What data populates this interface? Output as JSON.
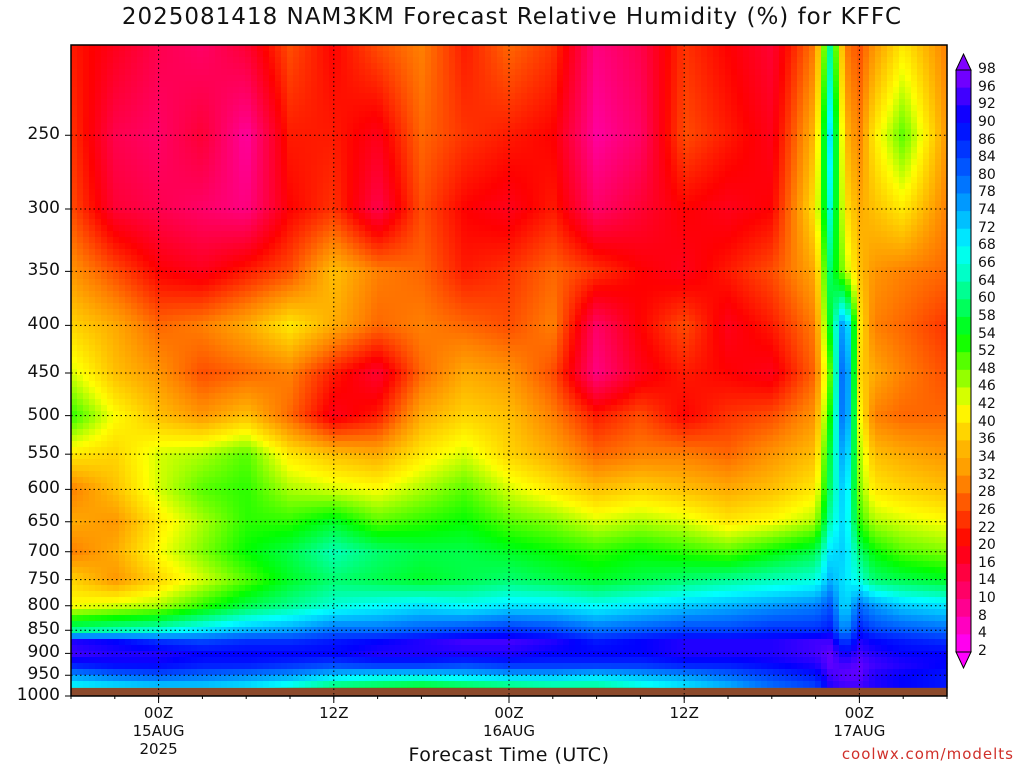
{
  "title": "2025081418 NAM3KM Forecast Relative Humidity (%) for KFFC",
  "watermark": "coolwx.com/modelts",
  "colors": {
    "ground": "#8c4a2c",
    "grid": "#000000",
    "scale": [
      "#ff00ff",
      "#ff0080",
      "#ff0000",
      "#ff8000",
      "#ffff00",
      "#00ff00",
      "#00ffff",
      "#0080ff",
      "#0000ff",
      "#8000ff"
    ]
  },
  "chart_data": {
    "type": "heatmap",
    "title": "2025081418 NAM3KM Forecast Relative Humidity (%) for KFFC",
    "xlabel": "Forecast Time (UTC)",
    "ylabel": "",
    "x_ticks": [
      {
        "hours": 6,
        "lines": [
          "00Z",
          "15AUG",
          "2025"
        ]
      },
      {
        "hours": 18,
        "lines": [
          "12Z"
        ]
      },
      {
        "hours": 30,
        "lines": [
          "00Z",
          "16AUG"
        ]
      },
      {
        "hours": 42,
        "lines": [
          "12Z"
        ]
      },
      {
        "hours": 54,
        "lines": [
          "00Z",
          "17AUG"
        ]
      }
    ],
    "xlim_hours": [
      0,
      60
    ],
    "y_ticks_hpa": [
      250,
      300,
      350,
      400,
      450,
      500,
      550,
      600,
      650,
      700,
      750,
      800,
      850,
      900,
      950,
      1000
    ],
    "ylim_hpa": [
      200,
      1000
    ],
    "y_scale": "log-pressure",
    "ground_pressure_hpa": 980,
    "colorbar_levels": [
      98,
      96,
      92,
      90,
      86,
      84,
      80,
      78,
      74,
      72,
      68,
      66,
      64,
      60,
      58,
      54,
      52,
      48,
      46,
      42,
      40,
      36,
      34,
      32,
      28,
      26,
      22,
      20,
      16,
      14,
      10,
      8,
      4,
      2
    ],
    "x_hours": [
      0,
      3,
      6,
      9,
      12,
      15,
      18,
      21,
      24,
      27,
      30,
      33,
      36,
      39,
      42,
      45,
      48,
      51,
      52,
      53,
      54,
      55,
      57,
      60
    ],
    "y_hpa": [
      200,
      250,
      300,
      350,
      400,
      450,
      500,
      550,
      600,
      650,
      700,
      750,
      800,
      850,
      875,
      900,
      925,
      950,
      975
    ],
    "rh": [
      [
        22,
        18,
        14,
        12,
        16,
        26,
        20,
        26,
        30,
        22,
        28,
        24,
        10,
        14,
        24,
        20,
        16,
        30,
        62,
        30,
        26,
        32,
        40,
        30
      ],
      [
        24,
        14,
        12,
        16,
        8,
        22,
        22,
        18,
        28,
        24,
        22,
        20,
        8,
        12,
        26,
        22,
        18,
        36,
        70,
        36,
        30,
        40,
        50,
        32
      ],
      [
        26,
        16,
        14,
        12,
        10,
        20,
        24,
        14,
        26,
        20,
        18,
        22,
        12,
        16,
        20,
        18,
        20,
        40,
        66,
        40,
        34,
        36,
        40,
        30
      ],
      [
        32,
        26,
        20,
        18,
        22,
        26,
        36,
        30,
        28,
        22,
        24,
        28,
        24,
        20,
        18,
        22,
        26,
        34,
        60,
        46,
        36,
        32,
        30,
        28
      ],
      [
        38,
        34,
        28,
        30,
        34,
        40,
        34,
        28,
        30,
        28,
        26,
        30,
        12,
        20,
        26,
        18,
        22,
        30,
        56,
        80,
        40,
        30,
        28,
        24
      ],
      [
        44,
        36,
        32,
        26,
        28,
        30,
        22,
        16,
        28,
        34,
        32,
        26,
        10,
        18,
        22,
        20,
        18,
        28,
        50,
        86,
        38,
        34,
        30,
        26
      ],
      [
        52,
        42,
        36,
        32,
        36,
        28,
        18,
        22,
        34,
        38,
        36,
        30,
        22,
        26,
        20,
        24,
        26,
        32,
        54,
        84,
        42,
        30,
        28,
        28
      ],
      [
        40,
        38,
        44,
        46,
        50,
        40,
        36,
        34,
        40,
        44,
        38,
        34,
        28,
        30,
        30,
        28,
        32,
        36,
        58,
        78,
        46,
        36,
        34,
        32
      ],
      [
        30,
        36,
        44,
        50,
        52,
        46,
        44,
        42,
        46,
        50,
        44,
        40,
        36,
        38,
        36,
        34,
        36,
        40,
        60,
        74,
        48,
        40,
        38,
        36
      ],
      [
        34,
        32,
        40,
        46,
        52,
        52,
        56,
        50,
        52,
        54,
        50,
        48,
        44,
        46,
        44,
        40,
        42,
        46,
        64,
        72,
        52,
        46,
        44,
        42
      ],
      [
        30,
        34,
        42,
        48,
        54,
        58,
        64,
        60,
        58,
        58,
        56,
        54,
        52,
        54,
        52,
        50,
        54,
        58,
        70,
        72,
        60,
        54,
        50,
        48
      ],
      [
        38,
        32,
        38,
        44,
        50,
        56,
        60,
        58,
        56,
        58,
        60,
        58,
        56,
        58,
        60,
        62,
        64,
        66,
        74,
        70,
        66,
        60,
        58,
        56
      ],
      [
        42,
        44,
        46,
        52,
        58,
        62,
        66,
        68,
        70,
        68,
        70,
        70,
        68,
        70,
        72,
        74,
        76,
        78,
        82,
        70,
        80,
        76,
        72,
        70
      ],
      [
        62,
        64,
        66,
        70,
        74,
        76,
        80,
        80,
        82,
        84,
        86,
        84,
        80,
        82,
        84,
        84,
        86,
        86,
        88,
        76,
        88,
        84,
        82,
        80
      ],
      [
        92,
        90,
        86,
        84,
        86,
        86,
        88,
        90,
        92,
        94,
        94,
        92,
        88,
        90,
        92,
        92,
        92,
        94,
        94,
        84,
        92,
        90,
        88,
        86
      ],
      [
        94,
        92,
        92,
        90,
        90,
        90,
        90,
        92,
        92,
        92,
        92,
        90,
        90,
        90,
        92,
        92,
        92,
        94,
        96,
        90,
        94,
        92,
        90,
        90
      ],
      [
        88,
        90,
        90,
        88,
        88,
        86,
        84,
        86,
        86,
        84,
        86,
        86,
        86,
        86,
        88,
        88,
        90,
        92,
        96,
        94,
        96,
        94,
        92,
        90
      ],
      [
        76,
        80,
        82,
        80,
        78,
        76,
        72,
        70,
        70,
        72,
        74,
        74,
        72,
        74,
        76,
        80,
        84,
        88,
        94,
        96,
        96,
        92,
        90,
        88
      ],
      [
        68,
        70,
        72,
        72,
        70,
        66,
        60,
        58,
        56,
        58,
        60,
        62,
        62,
        66,
        70,
        74,
        80,
        84,
        92,
        94,
        94,
        92,
        90,
        88
      ]
    ]
  }
}
